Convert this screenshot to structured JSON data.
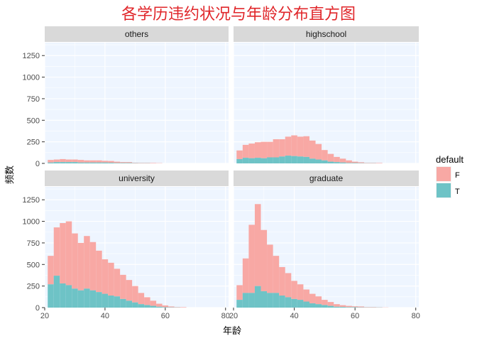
{
  "chart_data": {
    "type": "bar",
    "title": "各学历违约状况与年龄分布直方图",
    "xlabel": "年龄",
    "ylabel": "频数",
    "xlim": [
      20,
      81
    ],
    "ylim": [
      0,
      1400
    ],
    "x_ticks": [
      "20",
      "40",
      "60",
      "80"
    ],
    "y_ticks": [
      "0",
      "250",
      "500",
      "750",
      "1000",
      "1250"
    ],
    "bin_start": 21,
    "bin_width": 2,
    "colors": {
      "F": "#f8a8a4",
      "T": "#6ec3c6"
    },
    "legend": {
      "title": "default",
      "position": "right",
      "entries": [
        {
          "label": "F",
          "color": "#f8a8a4"
        },
        {
          "label": "T",
          "color": "#6ec3c6"
        }
      ]
    },
    "panels": [
      {
        "label": "others",
        "F": [
          30,
          30,
          35,
          30,
          30,
          30,
          25,
          25,
          25,
          20,
          20,
          15,
          10,
          10,
          5,
          5,
          5,
          5,
          3,
          0,
          0,
          0,
          0,
          0,
          0,
          0,
          0,
          0,
          0,
          0
        ],
        "T": [
          10,
          15,
          15,
          15,
          15,
          10,
          10,
          10,
          10,
          10,
          8,
          5,
          5,
          5,
          3,
          2,
          2,
          0,
          0,
          0,
          0,
          0,
          0,
          0,
          0,
          0,
          0,
          0,
          0,
          0
        ]
      },
      {
        "label": "highschool",
        "F": [
          100,
          150,
          170,
          180,
          190,
          180,
          210,
          200,
          220,
          240,
          230,
          240,
          210,
          180,
          120,
          90,
          60,
          45,
          30,
          15,
          10,
          5,
          5,
          5,
          0,
          0,
          0,
          0,
          0,
          0
        ],
        "T": [
          50,
          65,
          60,
          65,
          60,
          70,
          70,
          80,
          90,
          85,
          80,
          75,
          55,
          45,
          35,
          20,
          15,
          10,
          5,
          5,
          3,
          2,
          2,
          0,
          0,
          0,
          0,
          0,
          0,
          0
        ],
        "F_total": [
          150,
          215,
          230,
          245,
          250,
          250,
          280,
          280,
          310,
          325,
          310,
          315,
          265,
          225,
          155,
          110,
          75,
          55,
          35,
          20,
          13,
          7,
          7,
          5,
          0,
          0,
          0,
          0,
          0,
          0
        ]
      },
      {
        "label": "university",
        "F": [
          330,
          560,
          700,
          740,
          640,
          550,
          610,
          560,
          480,
          400,
          380,
          320,
          280,
          240,
          190,
          130,
          90,
          60,
          35,
          20,
          10,
          5,
          5,
          0,
          0,
          0,
          0,
          0,
          0,
          0
        ],
        "T": [
          270,
          370,
          280,
          260,
          220,
          200,
          220,
          200,
          180,
          160,
          140,
          130,
          100,
          80,
          60,
          40,
          30,
          20,
          10,
          5,
          3,
          2,
          0,
          0,
          0,
          0,
          0,
          0,
          0,
          0
        ],
        "F_total": [
          600,
          930,
          980,
          1000,
          860,
          750,
          830,
          760,
          660,
          560,
          520,
          450,
          380,
          320,
          250,
          170,
          120,
          80,
          45,
          25,
          13,
          7,
          5,
          0,
          0,
          0,
          0,
          0,
          0,
          0
        ]
      },
      {
        "label": "graduate",
        "F": [
          170,
          400,
          790,
          950,
          710,
          560,
          430,
          330,
          280,
          210,
          180,
          140,
          110,
          90,
          60,
          45,
          30,
          20,
          15,
          10,
          10,
          5,
          5,
          3,
          2,
          0,
          0,
          0,
          0,
          0
        ],
        "T": [
          90,
          170,
          170,
          250,
          190,
          170,
          170,
          140,
          120,
          100,
          90,
          70,
          50,
          40,
          30,
          20,
          10,
          8,
          5,
          5,
          3,
          2,
          2,
          2,
          0,
          0,
          0,
          0,
          0,
          0
        ]
      }
    ]
  }
}
